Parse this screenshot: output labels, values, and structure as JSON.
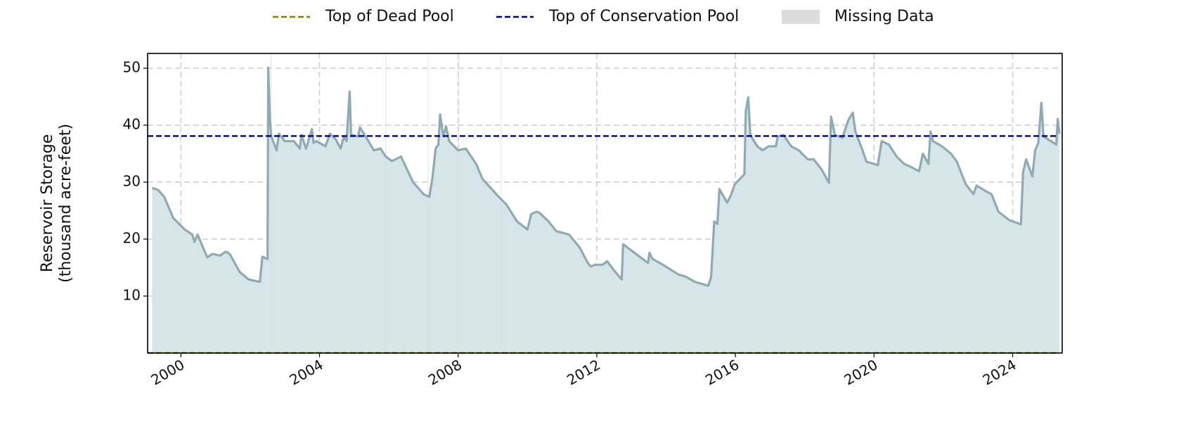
{
  "chart_data": {
    "type": "area",
    "ylabel": [
      "Reservoir Storage",
      "(thousand acre-feet)"
    ],
    "xlim": [
      1999.04,
      2025.43
    ],
    "xticks": [
      2000,
      2004,
      2008,
      2012,
      2016,
      2020,
      2024
    ],
    "ylim": [
      0,
      52.6
    ],
    "yticks": [
      10,
      20,
      30,
      40,
      50
    ],
    "grid": true,
    "color": "#8eaab2",
    "fill_color": "#d6e5e8",
    "x": [
      1999.17,
      1999.35,
      1999.52,
      1999.78,
      2000.11,
      2000.33,
      2000.39,
      2000.48,
      2000.76,
      2000.91,
      2001.13,
      2001.3,
      2001.41,
      2001.7,
      2001.96,
      2002.28,
      2002.35,
      2002.5,
      2002.52,
      2002.57,
      2002.61,
      2002.76,
      2002.83,
      2003.0,
      2003.26,
      2003.43,
      2003.48,
      2003.61,
      2003.78,
      2003.83,
      2003.91,
      2004.17,
      2004.3,
      2004.46,
      2004.61,
      2004.7,
      2004.78,
      2004.87,
      2004.91,
      2005.11,
      2005.17,
      2005.33,
      2005.57,
      2005.76,
      2005.91,
      2006.09,
      2006.26,
      2006.35,
      2006.52,
      2006.7,
      2007.0,
      2007.17,
      2007.26,
      2007.35,
      2007.43,
      2007.48,
      2007.57,
      2007.65,
      2007.74,
      2008.0,
      2008.22,
      2008.52,
      2008.7,
      2009.13,
      2009.39,
      2009.7,
      2010.0,
      2010.11,
      2010.26,
      2010.35,
      2010.61,
      2010.83,
      2011.2,
      2011.52,
      2011.74,
      2011.83,
      2011.96,
      2012.17,
      2012.3,
      2012.5,
      2012.72,
      2012.76,
      2013.04,
      2013.48,
      2013.52,
      2013.61,
      2013.91,
      2014.35,
      2014.57,
      2014.83,
      2015.22,
      2015.3,
      2015.39,
      2015.48,
      2015.54,
      2015.76,
      2015.87,
      2015.98,
      2016.09,
      2016.26,
      2016.3,
      2016.37,
      2016.43,
      2016.63,
      2016.78,
      2016.96,
      2017.17,
      2017.22,
      2017.39,
      2017.61,
      2017.83,
      2018.09,
      2018.26,
      2018.48,
      2018.7,
      2018.76,
      2018.87,
      2019.09,
      2019.26,
      2019.39,
      2019.46,
      2019.67,
      2019.78,
      2020.11,
      2020.22,
      2020.43,
      2020.65,
      2020.87,
      2021.09,
      2021.3,
      2021.41,
      2021.57,
      2021.63,
      2021.7,
      2021.96,
      2022.22,
      2022.39,
      2022.65,
      2022.87,
      2022.96,
      2023.26,
      2023.39,
      2023.59,
      2023.91,
      2024.24,
      2024.3,
      2024.39,
      2024.57,
      2024.65,
      2024.74,
      2024.83,
      2024.89,
      2025.11,
      2025.26,
      2025.3,
      2025.35
    ],
    "values": [
      29.0,
      28.6,
      27.4,
      23.7,
      21.7,
      20.8,
      19.5,
      20.8,
      16.8,
      17.4,
      17.1,
      17.8,
      17.4,
      14.2,
      12.9,
      12.5,
      16.9,
      16.5,
      50.1,
      40.9,
      38.0,
      35.6,
      38.5,
      37.2,
      37.2,
      35.9,
      38.3,
      35.9,
      39.3,
      36.9,
      37.2,
      36.3,
      38.5,
      37.6,
      35.9,
      38.0,
      37.2,
      45.9,
      38.3,
      38.0,
      39.6,
      38.0,
      35.6,
      35.9,
      34.5,
      33.7,
      34.2,
      34.5,
      32.3,
      30.0,
      27.9,
      27.4,
      30.8,
      35.9,
      36.6,
      41.9,
      38.0,
      39.8,
      37.2,
      35.6,
      35.9,
      33.2,
      30.6,
      27.7,
      26.1,
      23.1,
      21.7,
      24.4,
      24.8,
      24.6,
      23.1,
      21.4,
      20.8,
      18.4,
      15.8,
      15.2,
      15.5,
      15.5,
      16.1,
      14.5,
      12.9,
      19.1,
      17.8,
      15.8,
      17.6,
      16.5,
      15.5,
      13.8,
      13.4,
      12.5,
      11.8,
      13.4,
      23.1,
      22.7,
      28.8,
      26.4,
      27.7,
      29.6,
      30.3,
      31.4,
      42.5,
      44.9,
      38.3,
      36.3,
      35.6,
      36.3,
      36.3,
      38.0,
      38.3,
      36.3,
      35.6,
      34.0,
      34.0,
      32.3,
      29.9,
      41.5,
      38.3,
      37.8,
      40.9,
      42.2,
      38.9,
      35.6,
      33.6,
      33.0,
      37.2,
      36.6,
      34.5,
      33.2,
      32.6,
      31.9,
      35.0,
      33.2,
      38.9,
      37.2,
      36.3,
      35.0,
      33.6,
      29.6,
      27.9,
      29.4,
      28.3,
      27.9,
      24.8,
      23.3,
      22.6,
      31.7,
      34.0,
      31.0,
      35.6,
      36.9,
      43.9,
      38.0,
      37.2,
      36.6,
      41.1,
      38.5
    ],
    "reference_lines": [
      {
        "name": "Top of Dead Pool",
        "value": 0,
        "color": "#808000"
      },
      {
        "name": "Top of Conservation Pool",
        "value": 38.1,
        "color": "#000080"
      }
    ],
    "missing_data": {
      "name": "Missing Data",
      "color": "#dcdcdc",
      "ranges": [
        [
          2002.58,
          2002.62
        ],
        [
          2005.9,
          2005.93
        ],
        [
          2007.12,
          2007.15
        ],
        [
          2008.0,
          2008.03
        ],
        [
          2009.23,
          2009.26
        ]
      ]
    }
  }
}
